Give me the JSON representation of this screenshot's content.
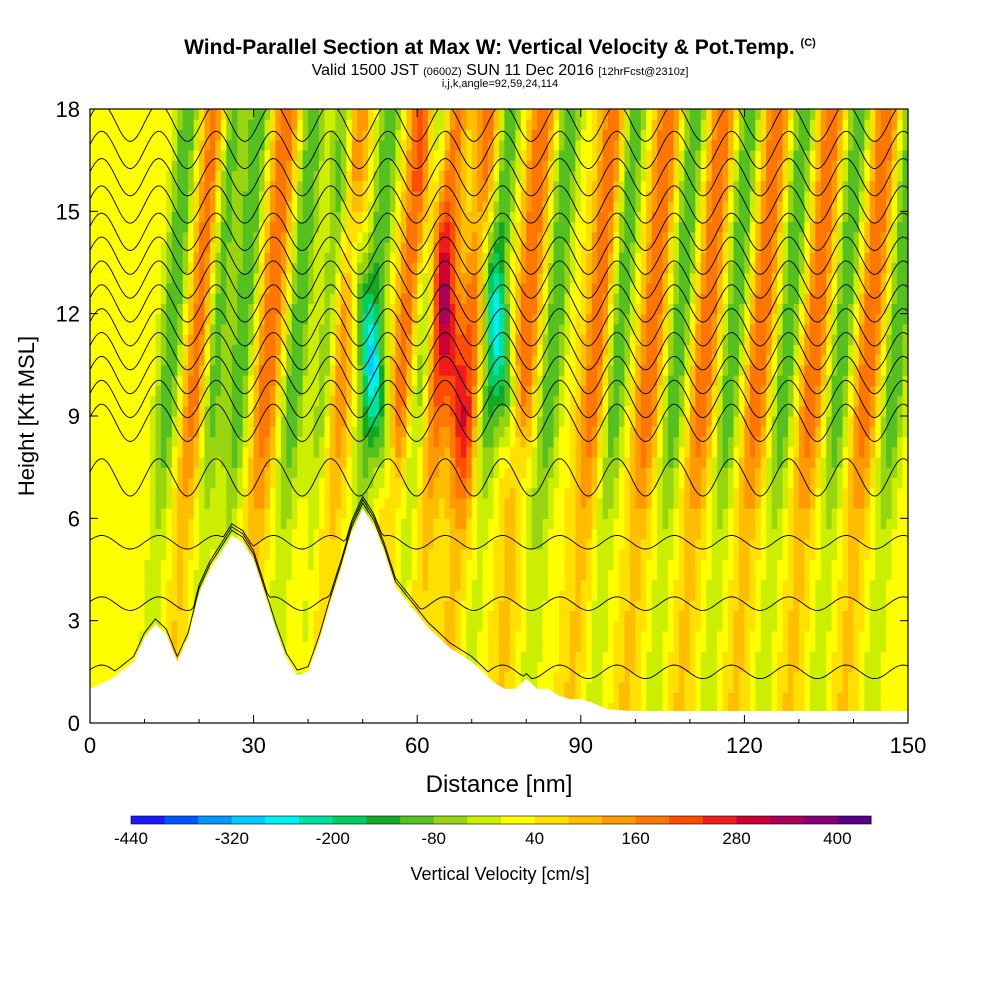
{
  "title": {
    "main": "Wind-Parallel Section at Max W: Vertical Velocity & Pot.Temp.",
    "copyright": "(C)",
    "valid_prefix": "Valid 1500 JST",
    "valid_utc": "(0600Z)",
    "valid_date": "SUN 11 Dec 2016",
    "forecast": "[12hrFcst@2310z]",
    "indices": "i,j,k,angle=92,59,24,114"
  },
  "chart_data": {
    "type": "heatmap",
    "xlabel": "Distance [nm]",
    "ylabel": "Height [Kft MSL]",
    "xlim": [
      0,
      150
    ],
    "ylim": [
      0,
      18
    ],
    "x_ticks": [
      0,
      30,
      60,
      90,
      120,
      150
    ],
    "y_ticks": [
      0,
      3,
      6,
      9,
      12,
      15,
      18
    ],
    "terrain": {
      "x": [
        0,
        4,
        8,
        10,
        12,
        14,
        16,
        18,
        20,
        22,
        24,
        26,
        28,
        30,
        32,
        34,
        36,
        38,
        40,
        42,
        44,
        46,
        48,
        50,
        52,
        54,
        56,
        58,
        60,
        62,
        64,
        66,
        68,
        70,
        72,
        74,
        76,
        78,
        80,
        82,
        84,
        86,
        88,
        90,
        92,
        95,
        100,
        110,
        120,
        130,
        140,
        150
      ],
      "y": [
        1.0,
        1.3,
        1.8,
        2.5,
        2.9,
        2.6,
        1.8,
        2.5,
        3.8,
        4.5,
        5.0,
        5.5,
        5.3,
        4.8,
        3.8,
        2.8,
        1.9,
        1.4,
        1.5,
        2.4,
        3.5,
        4.5,
        5.6,
        6.3,
        5.8,
        5.0,
        4.0,
        3.6,
        3.2,
        2.8,
        2.5,
        2.2,
        2.0,
        1.8,
        1.5,
        1.2,
        1.0,
        1.0,
        1.3,
        1.0,
        1.0,
        0.8,
        0.7,
        0.7,
        0.6,
        0.4,
        0.35,
        0.35,
        0.35,
        0.35,
        0.35,
        0.35
      ]
    },
    "color_scale": {
      "title": "Vertical Velocity [cm/s]",
      "min": -440,
      "max": 440,
      "tick_labels": [
        -440,
        -320,
        -200,
        -80,
        40,
        160,
        280,
        400
      ],
      "colors": [
        "#1a1aff",
        "#0055ff",
        "#0099ff",
        "#00ccff",
        "#00f0f0",
        "#00e0a0",
        "#00cc60",
        "#11aa22",
        "#55c020",
        "#99d410",
        "#ccee00",
        "#ffff00",
        "#ffe000",
        "#ffbf00",
        "#ff9900",
        "#ff7700",
        "#ff4d00",
        "#ee1c1c",
        "#cc0033",
        "#aa0055",
        "#880077",
        "#550088"
      ]
    },
    "updraft_bands_x": [
      19,
      32,
      45,
      57,
      63,
      69,
      79,
      92,
      102,
      112,
      122,
      132,
      142
    ],
    "downdraft_bands_x": [
      14,
      22,
      27,
      37,
      43,
      51,
      60,
      73,
      84,
      96,
      107,
      117,
      127,
      137,
      147
    ],
    "theta_contour_heights": [
      1.5,
      3.5,
      5.3,
      7.2,
      8.8,
      9.5,
      10.2,
      10.9,
      11.6,
      12.3,
      13.0,
      13.7,
      14.4,
      15.2,
      16.0,
      16.8,
      17.6
    ]
  }
}
